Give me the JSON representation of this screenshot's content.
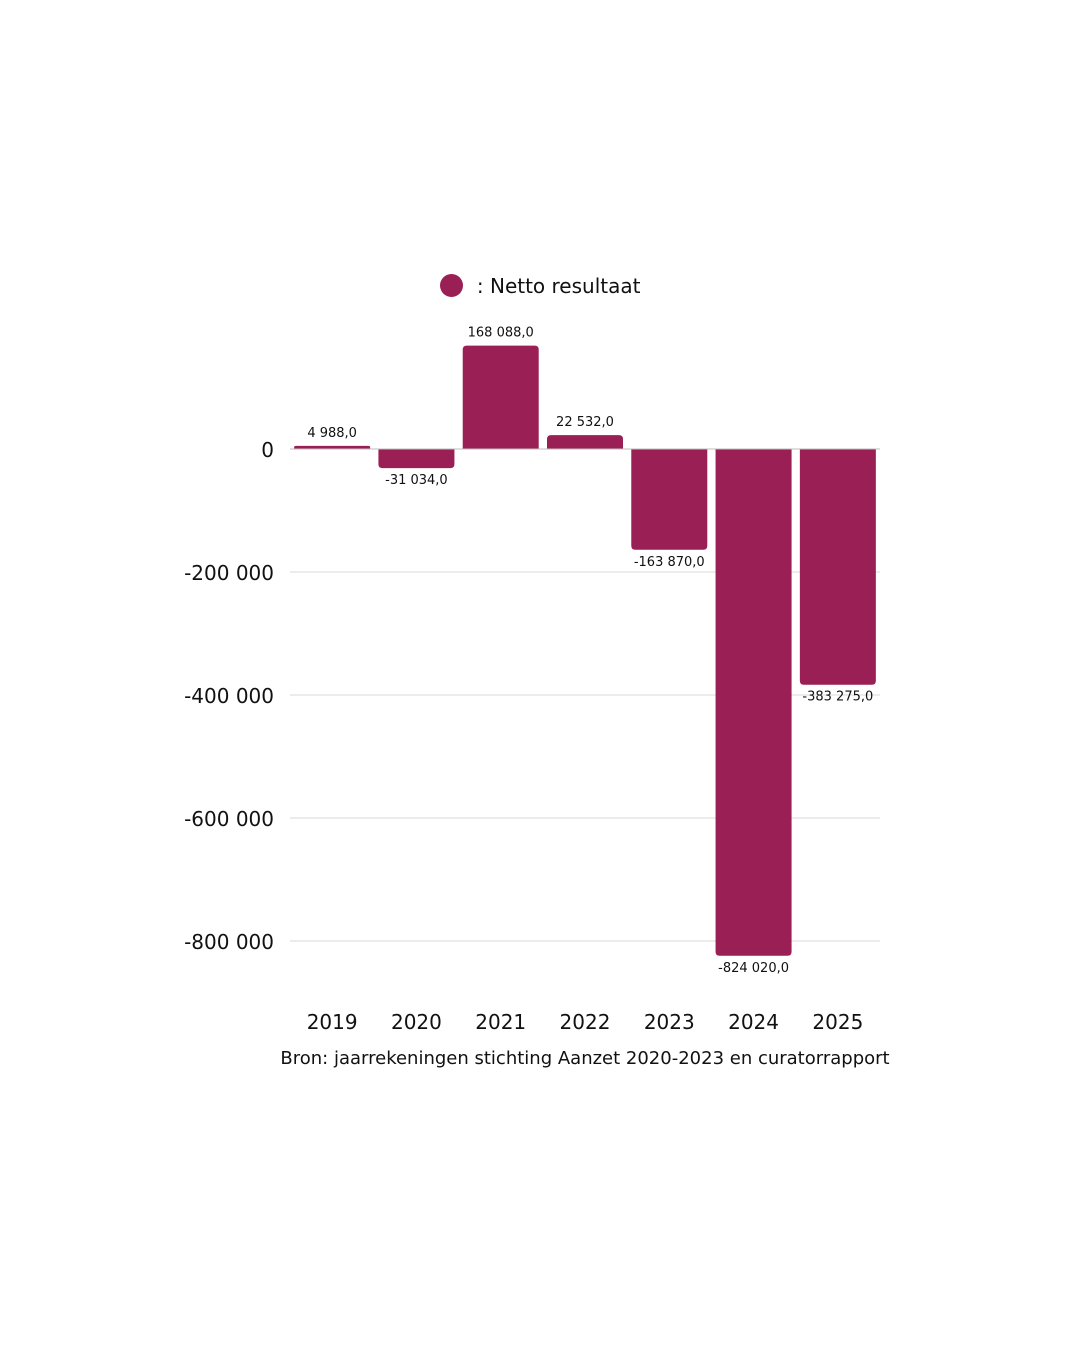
{
  "legend": {
    "marker_color": "#9a1f54",
    "separator": ":",
    "label": "Netto resultaat"
  },
  "source": "Bron: jaarrekeningen stichting Aanzet 2020-2023 en curatorrapport",
  "chart_data": {
    "type": "bar",
    "title": "",
    "xlabel": "",
    "ylabel": "",
    "categories": [
      "2019",
      "2020",
      "2021",
      "2022",
      "2023",
      "2024",
      "2025"
    ],
    "series": [
      {
        "name": "Netto resultaat",
        "color": "#9a1f54",
        "values": [
          4988.0,
          -31034.0,
          168088.0,
          22532.0,
          -163870.0,
          -824020.0,
          -383275.0
        ],
        "labels": [
          "4 988,0",
          "-31 034,0",
          "168 088,0",
          "22 532,0",
          "-163 870,0",
          "-824 020,0",
          "-383 275,0"
        ]
      }
    ],
    "yticks": [
      0,
      -200000,
      -400000,
      -600000,
      -800000
    ],
    "ytick_labels": [
      "0",
      "-200 000",
      "-400 000",
      "-600 000",
      "-800 000"
    ],
    "ylim": [
      -880000,
      200000
    ],
    "grid": true,
    "legend_position": "top-center"
  }
}
